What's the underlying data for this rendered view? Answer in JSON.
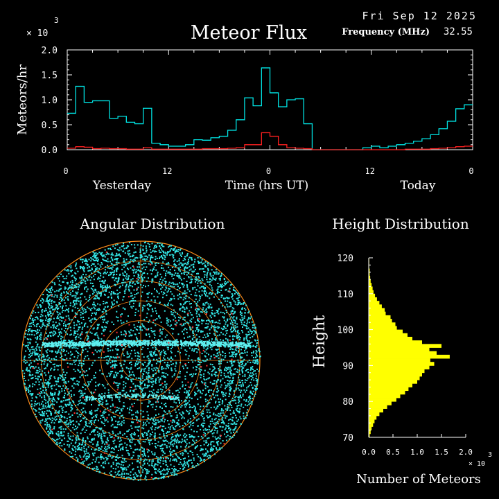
{
  "header": {
    "date": "Fri Sep 12 2025",
    "frequency_label": "Frequency (MHz)",
    "frequency_value": "32.55"
  },
  "chart_data": [
    {
      "type": "line",
      "title": "Meteor Flux",
      "ylabel": "Meteors/hr",
      "yscale_label": "× 10",
      "yscale_exp": "3",
      "xlabel": "Time (hrs UT)",
      "x_period_labels": [
        "Yesterday",
        "Today"
      ],
      "x_tick_labels": [
        "0",
        "12",
        "0",
        "12",
        "0"
      ],
      "x_ticks_hours": [
        0,
        12,
        24,
        36,
        48
      ],
      "y_tick_labels": [
        "0.0",
        "0.5",
        "1.0",
        "1.5",
        "2.0"
      ],
      "ylim": [
        0,
        2.0
      ],
      "xlim": [
        0,
        48
      ],
      "series": [
        {
          "color": "#00e5e5",
          "values": [
            0.73,
            1.27,
            0.95,
            0.98,
            0.98,
            0.63,
            0.67,
            0.55,
            0.52,
            0.83,
            0.13,
            0.1,
            0.07,
            0.07,
            0.1,
            0.2,
            0.19,
            0.24,
            0.27,
            0.39,
            0.6,
            1.04,
            0.88,
            1.64,
            1.14,
            0.86,
            1.0,
            1.02,
            0.52,
            0.0,
            0.0,
            0.0,
            0.0,
            0.0,
            0.0,
            0.04,
            0.07,
            0.04,
            0.07,
            0.1,
            0.13,
            0.17,
            0.22,
            0.3,
            0.42,
            0.57,
            0.82,
            0.9
          ]
        },
        {
          "color": "#ff2020",
          "values": [
            0.03,
            0.06,
            0.05,
            0.02,
            0.03,
            0.02,
            0.02,
            0.01,
            0.01,
            0.04,
            0.01,
            0.01,
            0.01,
            0.01,
            0.01,
            0.01,
            0.02,
            0.02,
            0.02,
            0.03,
            0.04,
            0.1,
            0.1,
            0.34,
            0.27,
            0.1,
            0.04,
            0.03,
            0.02,
            0.0,
            0.0,
            0.0,
            0.0,
            0.0,
            0.0,
            0.0,
            0.0,
            0.0,
            0.0,
            0.0,
            0.01,
            0.01,
            0.01,
            0.02,
            0.03,
            0.04,
            0.06,
            0.07
          ]
        }
      ]
    },
    {
      "type": "scatter",
      "title": "Angular Distribution",
      "description_ignored": false,
      "ring_count": 6
    },
    {
      "type": "bar",
      "orientation": "horizontal",
      "title": "Height Distribution",
      "ylabel": "Height",
      "xlabel": "Number of Meteors",
      "xscale_label": "× 10",
      "xscale_exp": "3",
      "y_tick_labels": [
        "70",
        "80",
        "90",
        "100",
        "110",
        "120"
      ],
      "ylim": [
        70,
        120
      ],
      "x_tick_labels": [
        "0.0",
        "0.5",
        "1.0",
        "1.5",
        "2.0"
      ],
      "xlim": [
        0,
        2.0
      ],
      "heights": [
        70,
        71,
        72,
        73,
        74,
        75,
        76,
        77,
        78,
        79,
        80,
        81,
        82,
        83,
        84,
        85,
        86,
        87,
        88,
        89,
        90,
        91,
        92,
        93,
        94,
        95,
        96,
        97,
        98,
        99,
        100,
        101,
        102,
        103,
        104,
        105,
        106,
        107,
        108,
        109,
        110,
        111,
        112,
        113,
        114,
        115,
        116,
        117,
        118,
        119
      ],
      "values": [
        0.02,
        0.04,
        0.06,
        0.09,
        0.12,
        0.16,
        0.22,
        0.3,
        0.38,
        0.47,
        0.57,
        0.65,
        0.75,
        0.82,
        0.9,
        1.0,
        1.05,
        1.1,
        1.15,
        1.25,
        1.35,
        1.27,
        1.67,
        1.4,
        1.25,
        1.5,
        1.1,
        0.9,
        0.8,
        0.7,
        0.58,
        0.55,
        0.48,
        0.45,
        0.35,
        0.33,
        0.27,
        0.22,
        0.17,
        0.13,
        0.1,
        0.08,
        0.06,
        0.04,
        0.03,
        0.02,
        0.02,
        0.01,
        0.01,
        0.01
      ]
    }
  ]
}
